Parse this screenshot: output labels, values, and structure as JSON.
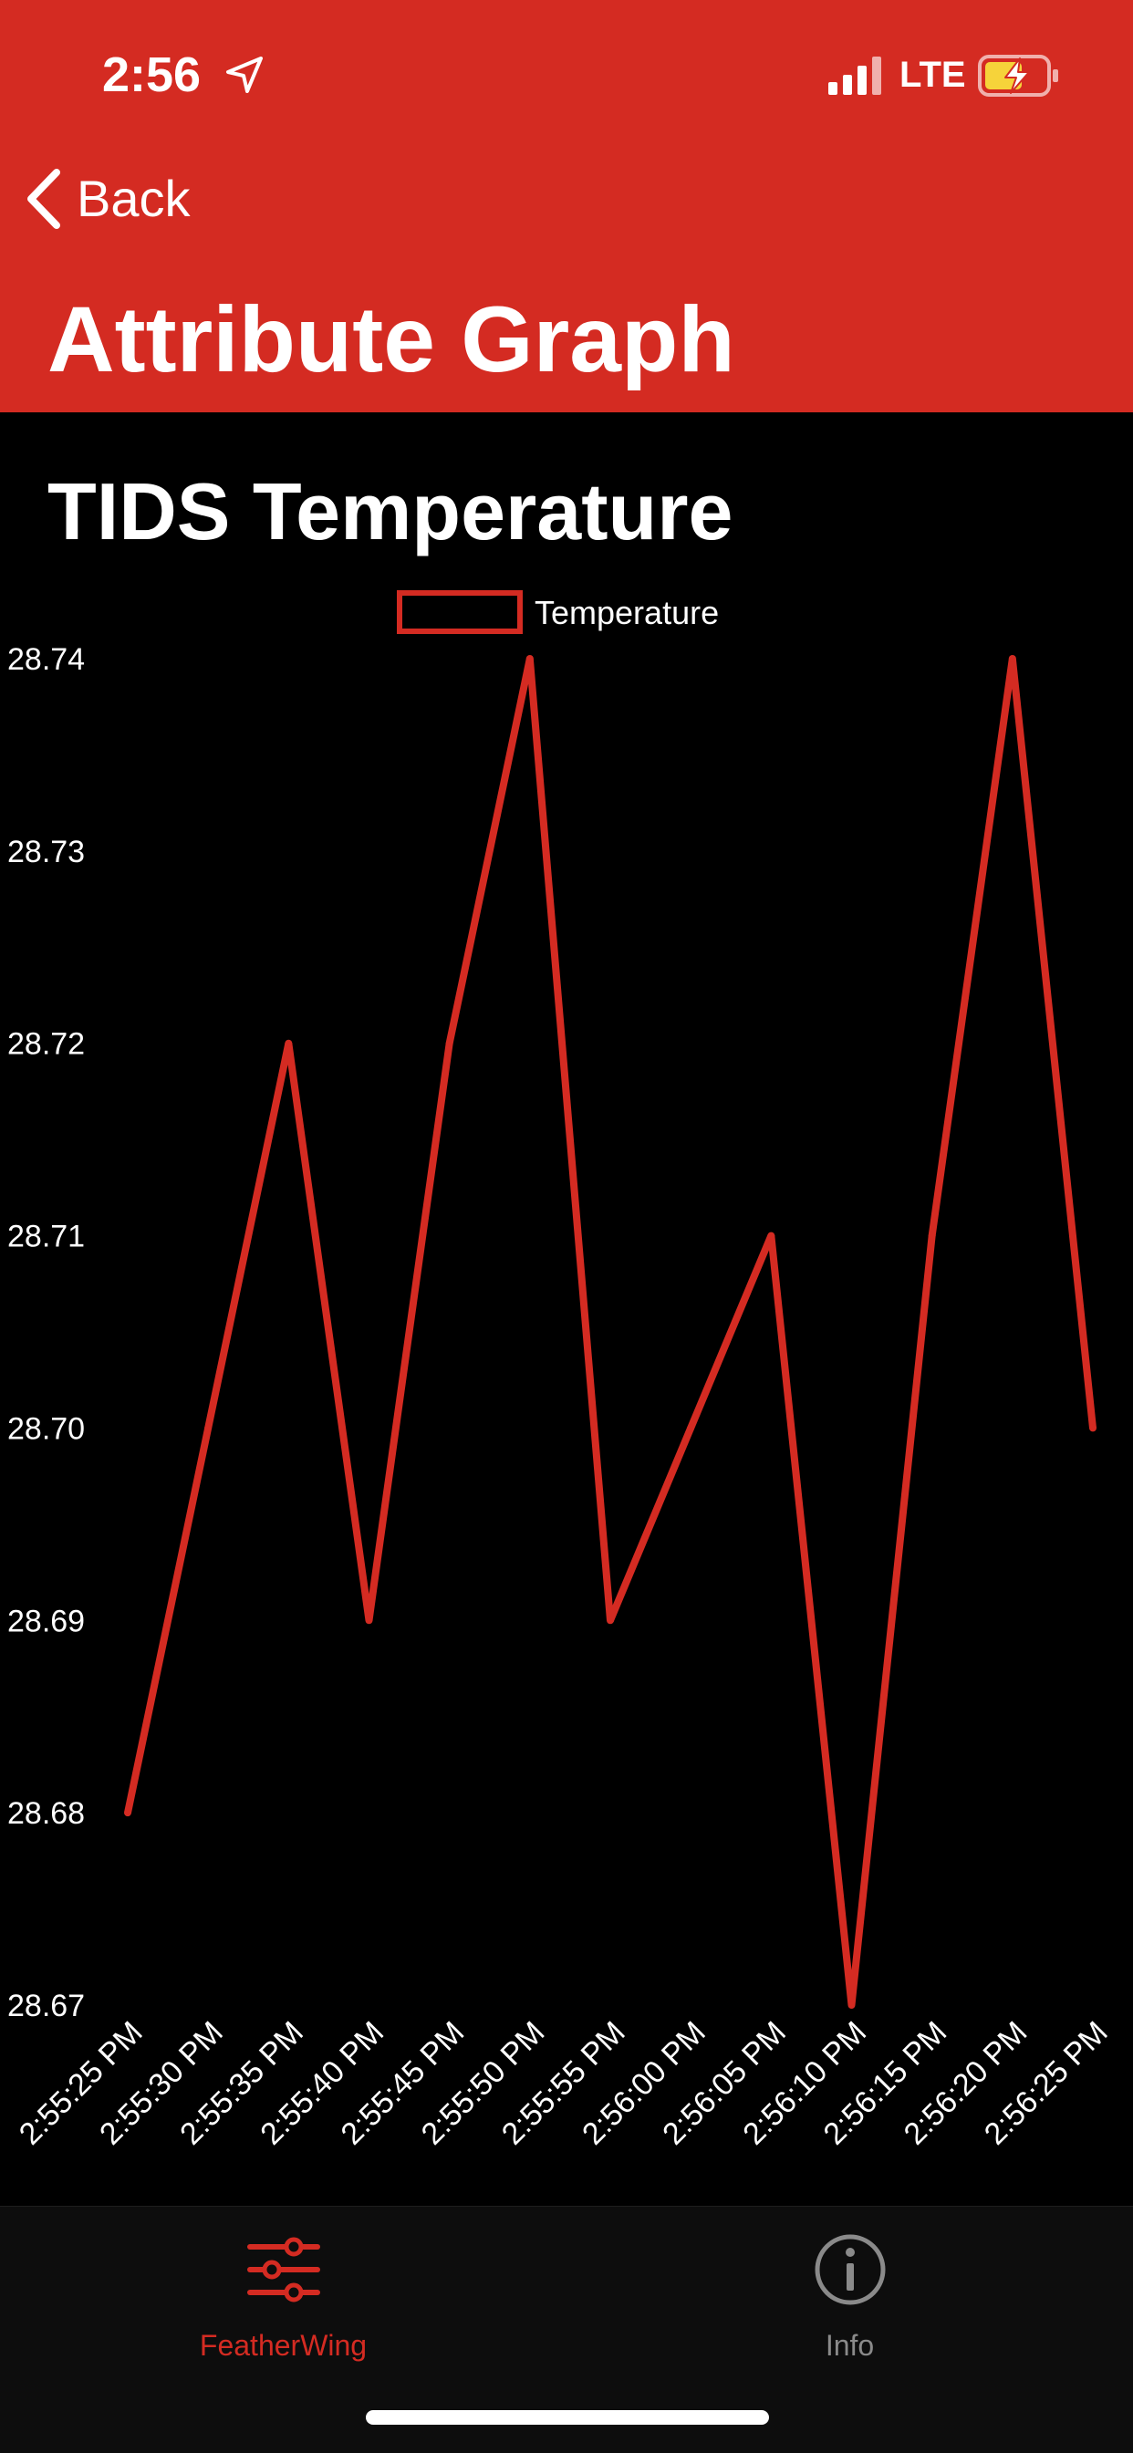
{
  "status_bar": {
    "time": "2:56",
    "network": "LTE",
    "icons": [
      "location-arrow-icon",
      "signal-bars-icon",
      "battery-charging-icon"
    ]
  },
  "nav": {
    "back_label": "Back",
    "title": "Attribute Graph"
  },
  "colors": {
    "accent": "#d42b22",
    "line": "#d42b22",
    "background": "#000000",
    "tab_inactive": "#8a8a8a"
  },
  "chart_data": {
    "type": "line",
    "title": "TIDS Temperature",
    "x": [
      "2:55:25 PM",
      "2:55:30 PM",
      "2:55:35 PM",
      "2:55:40 PM",
      "2:55:45 PM",
      "2:55:50 PM",
      "2:55:55 PM",
      "2:56:00 PM",
      "2:56:05 PM",
      "2:56:10 PM",
      "2:56:15 PM",
      "2:56:20 PM",
      "2:56:25 PM"
    ],
    "series": [
      {
        "name": "Temperature",
        "values": [
          28.68,
          28.7,
          28.72,
          28.69,
          28.72,
          28.74,
          28.69,
          28.7,
          28.71,
          28.67,
          28.71,
          28.74,
          28.7
        ]
      }
    ],
    "y_ticks": [
      "28.74",
      "28.73",
      "28.72",
      "28.71",
      "28.70",
      "28.69",
      "28.68",
      "28.67"
    ],
    "ylim": [
      28.67,
      28.74
    ],
    "legend": "top-center",
    "grid": false
  },
  "tabs": [
    {
      "label": "FeatherWing",
      "icon": "sliders-icon",
      "active": true
    },
    {
      "label": "Info",
      "icon": "info-icon",
      "active": false
    }
  ]
}
